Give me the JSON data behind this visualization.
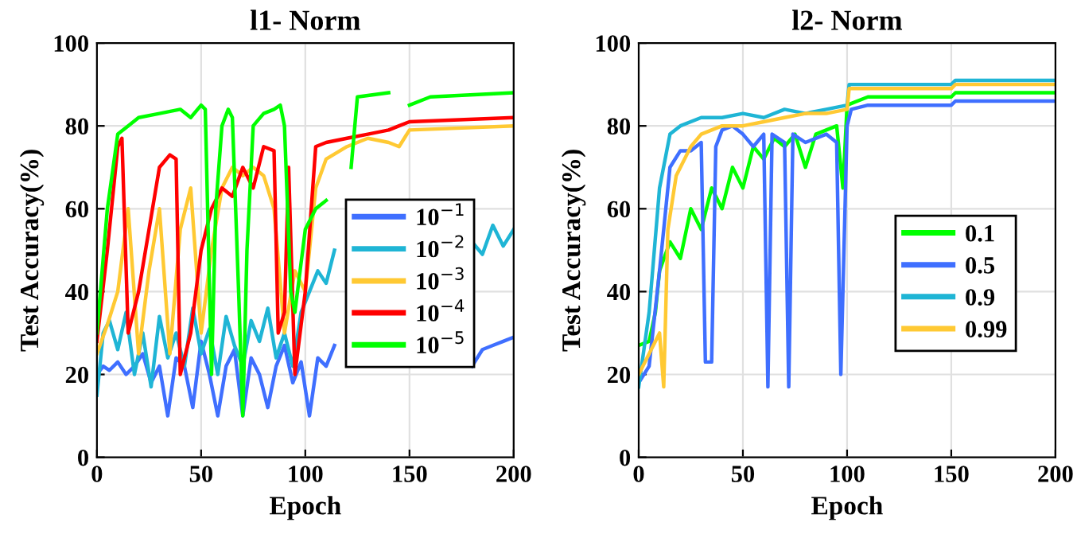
{
  "chart_data": [
    {
      "type": "line",
      "title": "l1- Norm",
      "xlabel": "Epoch",
      "ylabel": "Test Accuracy(%)",
      "xlim": [
        0,
        200
      ],
      "ylim": [
        0,
        100
      ],
      "xticks": [
        0,
        50,
        100,
        150,
        200
      ],
      "yticks": [
        0,
        20,
        40,
        60,
        80,
        100
      ],
      "grid": true,
      "legend": "right",
      "line_style": "solid",
      "marker": "none",
      "series": [
        {
          "name": "10$^{−1}$",
          "color": "#3f6fff",
          "x": [
            0,
            3,
            6,
            10,
            14,
            18,
            22,
            26,
            30,
            34,
            38,
            42,
            46,
            50,
            54,
            58,
            62,
            66,
            70,
            74,
            78,
            82,
            86,
            90,
            94,
            98,
            102,
            106,
            110,
            114,
            118,
            122,
            126,
            130,
            134,
            138,
            142,
            146,
            150,
            155,
            160,
            165,
            170,
            175,
            180,
            185,
            190,
            195,
            200
          ],
          "values": [
            20,
            22,
            21,
            23,
            20,
            22,
            25,
            18,
            22,
            10,
            24,
            22,
            12,
            28,
            20,
            10,
            22,
            26,
            10,
            24,
            20,
            12,
            22,
            27,
            18,
            23,
            10,
            24,
            22,
            27,
            null,
            null,
            null,
            null,
            null,
            null,
            null,
            null,
            null,
            null,
            null,
            null,
            null,
            null,
            22,
            26,
            27,
            28,
            29
          ]
        },
        {
          "name": "10$^{−2}$",
          "color": "#1fb5d5",
          "x": [
            0,
            3,
            6,
            10,
            14,
            18,
            22,
            26,
            30,
            34,
            38,
            42,
            46,
            50,
            54,
            58,
            62,
            66,
            70,
            74,
            78,
            82,
            86,
            90,
            94,
            98,
            102,
            106,
            110,
            114,
            118,
            122,
            126,
            130,
            134,
            138,
            142,
            146,
            150,
            155,
            160,
            165,
            170,
            175,
            180,
            185,
            190,
            195,
            200
          ],
          "values": [
            15,
            30,
            33,
            26,
            35,
            20,
            30,
            17,
            34,
            24,
            30,
            22,
            36,
            25,
            31,
            20,
            34,
            27,
            22,
            33,
            28,
            36,
            24,
            30,
            22,
            35,
            40,
            45,
            42,
            50,
            null,
            null,
            null,
            null,
            null,
            null,
            null,
            null,
            null,
            null,
            null,
            null,
            null,
            null,
            52,
            49,
            56,
            51,
            55
          ]
        },
        {
          "name": "10$^{−3}$",
          "color": "#ffc933",
          "x": [
            0,
            5,
            10,
            15,
            20,
            25,
            30,
            35,
            40,
            45,
            50,
            55,
            60,
            65,
            70,
            75,
            80,
            85,
            90,
            95,
            100,
            105,
            110,
            120,
            130,
            140,
            145,
            150,
            200
          ],
          "values": [
            25,
            32,
            40,
            60,
            25,
            45,
            60,
            25,
            55,
            65,
            30,
            50,
            65,
            70,
            68,
            70,
            68,
            60,
            30,
            45,
            40,
            65,
            72,
            75,
            77,
            76,
            75,
            79,
            80
          ]
        },
        {
          "name": "10$^{−4}$",
          "color": "#ff0000",
          "x": [
            0,
            5,
            10,
            12,
            15,
            20,
            25,
            30,
            35,
            38,
            40,
            45,
            50,
            55,
            60,
            65,
            70,
            75,
            80,
            85,
            87,
            90,
            92,
            95,
            100,
            105,
            110,
            120,
            130,
            140,
            145,
            150,
            200
          ],
          "values": [
            28,
            50,
            75,
            77,
            30,
            40,
            55,
            70,
            73,
            72,
            20,
            30,
            50,
            60,
            65,
            63,
            70,
            65,
            75,
            74,
            30,
            35,
            70,
            20,
            40,
            75,
            76,
            77,
            78,
            79,
            80,
            81,
            82
          ]
        },
        {
          "name": "10$^{−5}$",
          "color": "#00ff00",
          "x": [
            0,
            5,
            10,
            15,
            20,
            30,
            40,
            45,
            50,
            52,
            55,
            57,
            60,
            63,
            65,
            68,
            70,
            72,
            75,
            80,
            85,
            88,
            90,
            93,
            95,
            100,
            105,
            110,
            120,
            122,
            125,
            140,
            142,
            145,
            147,
            150,
            160,
            200
          ],
          "values": [
            30,
            60,
            78,
            80,
            82,
            83,
            84,
            82,
            85,
            84,
            20,
            60,
            80,
            84,
            82,
            40,
            10,
            50,
            80,
            83,
            84,
            85,
            80,
            40,
            35,
            55,
            60,
            62,
            null,
            70,
            87,
            88,
            null,
            null,
            null,
            85,
            87,
            88
          ]
        }
      ]
    },
    {
      "type": "line",
      "title": "l2- Norm",
      "xlabel": "Epoch",
      "ylabel": "Test Accuracy(%)",
      "xlim": [
        0,
        200
      ],
      "ylim": [
        0,
        100
      ],
      "xticks": [
        0,
        50,
        100,
        150,
        200
      ],
      "yticks": [
        0,
        20,
        40,
        60,
        80,
        100
      ],
      "grid": true,
      "legend": "right",
      "line_style": "solid",
      "marker": "none",
      "series": [
        {
          "name": "0.1",
          "color": "#00ff00",
          "x": [
            0,
            5,
            8,
            10,
            15,
            20,
            25,
            30,
            35,
            40,
            45,
            50,
            55,
            60,
            65,
            70,
            75,
            80,
            85,
            90,
            95,
            98,
            100,
            110,
            150,
            152,
            200
          ],
          "values": [
            27,
            28,
            35,
            45,
            52,
            48,
            60,
            55,
            65,
            60,
            70,
            65,
            75,
            72,
            77,
            75,
            78,
            70,
            78,
            79,
            80,
            65,
            85,
            87,
            87,
            88,
            88
          ]
        },
        {
          "name": "0.5",
          "color": "#3f6fff",
          "x": [
            0,
            5,
            10,
            15,
            20,
            25,
            30,
            32,
            35,
            37,
            40,
            45,
            50,
            55,
            60,
            62,
            64,
            70,
            72,
            74,
            80,
            90,
            95,
            97,
            100,
            102,
            110,
            150,
            152,
            200
          ],
          "values": [
            18,
            22,
            45,
            70,
            74,
            74,
            76,
            23,
            23,
            75,
            79,
            80,
            78,
            75,
            78,
            17,
            78,
            76,
            17,
            78,
            76,
            78,
            76,
            20,
            80,
            84,
            85,
            85,
            86,
            86
          ]
        },
        {
          "name": "0.9",
          "color": "#1fb5d5",
          "x": [
            0,
            5,
            10,
            15,
            20,
            30,
            40,
            50,
            60,
            70,
            80,
            90,
            100,
            101,
            150,
            152,
            200
          ],
          "values": [
            17,
            35,
            65,
            78,
            80,
            82,
            82,
            83,
            82,
            84,
            83,
            84,
            85,
            90,
            90,
            91,
            91
          ]
        },
        {
          "name": "0.99",
          "color": "#ffc933",
          "x": [
            0,
            5,
            10,
            12,
            14,
            18,
            25,
            30,
            40,
            50,
            60,
            70,
            80,
            90,
            100,
            101,
            150,
            152,
            200
          ],
          "values": [
            20,
            25,
            30,
            17,
            55,
            68,
            75,
            78,
            80,
            80,
            81,
            82,
            83,
            83,
            84,
            89,
            89,
            90,
            90
          ]
        }
      ]
    }
  ]
}
